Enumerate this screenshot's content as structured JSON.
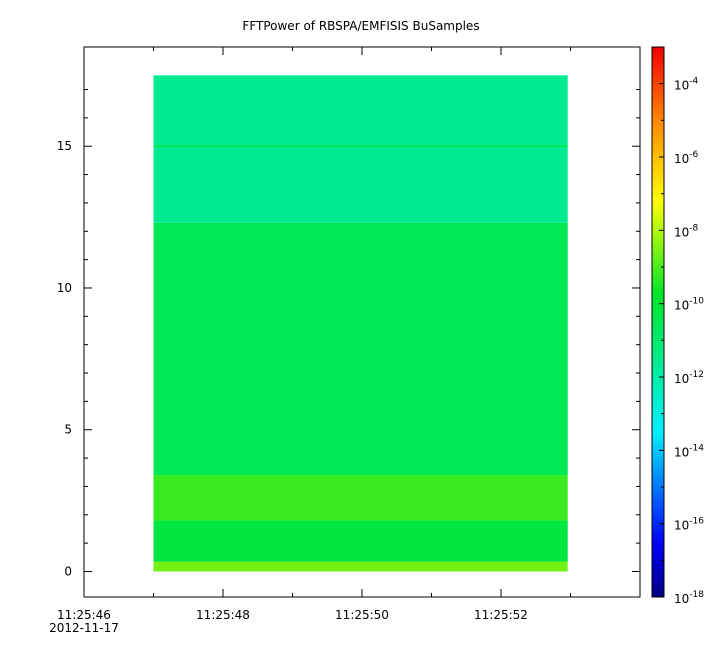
{
  "chart_data": {
    "type": "heatmap",
    "title": "FFTPower of RBSPA/EMFISIS  BuSamples",
    "xlabel": "",
    "ylabel": "",
    "x_axis": {
      "ticks": [
        {
          "label": "11:25:46",
          "sublabel": "2012-11-17",
          "t": 46
        },
        {
          "label": "11:25:48",
          "sublabel": "",
          "t": 48
        },
        {
          "label": "11:25:50",
          "sublabel": "",
          "t": 50
        },
        {
          "label": "11:25:52",
          "sublabel": "",
          "t": 52
        }
      ],
      "minor_ticks": [
        47,
        49,
        51,
        53
      ],
      "range_seconds": [
        46,
        54
      ],
      "data_range_seconds": [
        47.0,
        52.96
      ]
    },
    "y_axis": {
      "ticks": [
        {
          "label": "0",
          "value": 0
        },
        {
          "label": "5",
          "value": 5
        },
        {
          "label": "10",
          "value": 10
        },
        {
          "label": "15",
          "value": 15
        }
      ],
      "range": [
        -0.9,
        18.5
      ],
      "data_range": [
        0,
        17.5
      ]
    },
    "colorbar": {
      "scale": "log",
      "range": [
        1e-18,
        0.001
      ],
      "labels": [
        {
          "base": "10",
          "exp": "-4",
          "value": -4
        },
        {
          "base": "10",
          "exp": "-6",
          "value": -6
        },
        {
          "base": "10",
          "exp": "-8",
          "value": -8
        },
        {
          "base": "10",
          "exp": "-10",
          "value": -10
        },
        {
          "base": "10",
          "exp": "-12",
          "value": -12
        },
        {
          "base": "10",
          "exp": "-14",
          "value": -14
        },
        {
          "base": "10",
          "exp": "-16",
          "value": -16
        },
        {
          "base": "10",
          "exp": "-18",
          "value": -18
        }
      ]
    },
    "bands": [
      {
        "y_from": 0.0,
        "y_to": 0.35,
        "level": -8.6
      },
      {
        "y_from": 0.35,
        "y_to": 1.8,
        "level": -10.2
      },
      {
        "y_from": 1.8,
        "y_to": 3.4,
        "level": -9.2
      },
      {
        "y_from": 3.4,
        "y_to": 12.3,
        "level": -10.5
      },
      {
        "y_from": 12.3,
        "y_to": 17.5,
        "level": -11.6
      }
    ],
    "lines": [
      {
        "y": 15.0,
        "level": -10.4
      }
    ]
  }
}
